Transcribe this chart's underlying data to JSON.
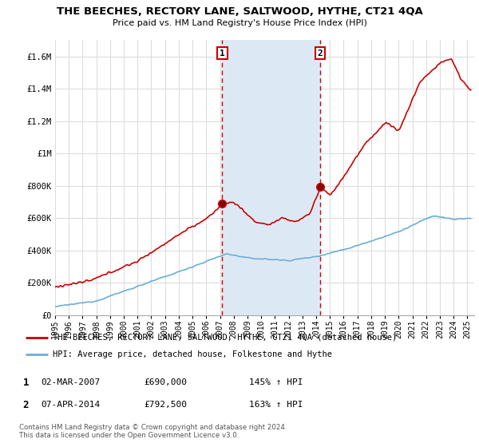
{
  "title": "THE BEECHES, RECTORY LANE, SALTWOOD, HYTHE, CT21 4QA",
  "subtitle": "Price paid vs. HM Land Registry's House Price Index (HPI)",
  "ylim": [
    0,
    1700000
  ],
  "yticks": [
    0,
    200000,
    400000,
    600000,
    800000,
    1000000,
    1200000,
    1400000,
    1600000
  ],
  "ytick_labels": [
    "£0",
    "£200K",
    "£400K",
    "£600K",
    "£800K",
    "£1M",
    "£1.2M",
    "£1.4M",
    "£1.6M"
  ],
  "xmin": 1995.0,
  "xmax": 2025.5,
  "hpi_color": "#6baed6",
  "price_color": "#cc0000",
  "marker1_year": 2007.17,
  "marker1_price": 690000,
  "marker2_year": 2014.27,
  "marker2_price": 792500,
  "legend_price_label": "THE BEECHES, RECTORY LANE, SALTWOOD, HYTHE, CT21 4QA (detached house)",
  "legend_hpi_label": "HPI: Average price, detached house, Folkestone and Hythe",
  "table_rows": [
    {
      "num": "1",
      "date": "02-MAR-2007",
      "price": "£690,000",
      "hpi": "145% ↑ HPI"
    },
    {
      "num": "2",
      "date": "07-APR-2014",
      "price": "£792,500",
      "hpi": "163% ↑ HPI"
    }
  ],
  "footnote": "Contains HM Land Registry data © Crown copyright and database right 2024.\nThis data is licensed under the Open Government Licence v3.0.",
  "background_color": "#ffffff",
  "plot_bg_color": "#ffffff",
  "grid_color": "#dddddd",
  "shaded_region_color": "#dce9f5"
}
